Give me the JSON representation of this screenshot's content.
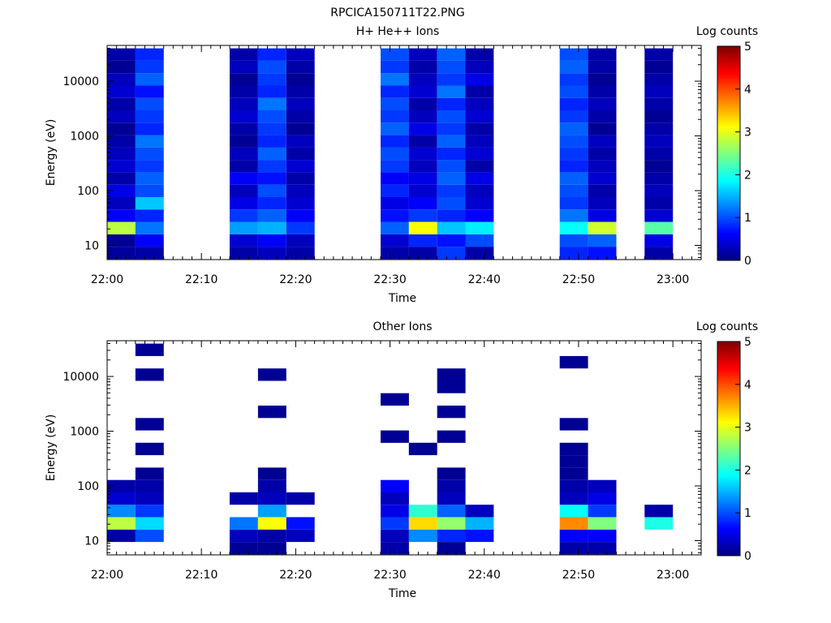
{
  "figure_title": "RPCICA150711T22.PNG",
  "chart_data": [
    {
      "type": "heatmap",
      "title": "H+ He++ Ions",
      "xlabel": "Time",
      "ylabel": "Energy (eV)",
      "yscale": "log",
      "ylim": [
        5.5,
        45000
      ],
      "xlim": [
        "22:00",
        "23:03"
      ],
      "xticks": [
        "22:00",
        "22:10",
        "22:20",
        "22:30",
        "22:40",
        "22:50",
        "23:00"
      ],
      "yticks": [
        "10",
        "100",
        "1000",
        "10000"
      ],
      "colorbar": {
        "label": "Log counts",
        "min": 0,
        "max": 5,
        "ticks": [
          "0",
          "1",
          "2",
          "3",
          "4",
          "5"
        ]
      },
      "columns": [
        {
          "t0": "22:00",
          "t1": "22:03",
          "levels": [
            0.15,
            0.1,
            2.8,
            0.6,
            0.3,
            0.5,
            0.2,
            0.4,
            0.3,
            0.2,
            0.1,
            0.3,
            0.2,
            0.4,
            0.3,
            0.1,
            0.2
          ]
        },
        {
          "t0": "22:03",
          "t1": "22:06",
          "levels": [
            0.2,
            0.6,
            1.2,
            0.8,
            1.6,
            1.0,
            1.1,
            0.9,
            1.0,
            1.2,
            0.8,
            0.9,
            1.0,
            0.7,
            1.1,
            0.9,
            0.8
          ]
        },
        {
          "t0": "22:13",
          "t1": "22:16",
          "levels": [
            0.2,
            0.4,
            1.4,
            0.9,
            0.5,
            0.3,
            0.6,
            0.2,
            0.3,
            0.1,
            0.2,
            0.4,
            0.3,
            0.2,
            0.1,
            0.3,
            0.2
          ]
        },
        {
          "t0": "22:16",
          "t1": "22:19",
          "levels": [
            0.3,
            0.6,
            1.5,
            1.1,
            0.8,
            1.0,
            0.7,
            0.9,
            1.1,
            0.8,
            0.9,
            1.0,
            1.2,
            0.8,
            0.9,
            1.0,
            0.8
          ]
        },
        {
          "t0": "22:19",
          "t1": "22:22",
          "levels": [
            0.2,
            0.3,
            0.9,
            0.6,
            0.4,
            0.3,
            0.2,
            0.4,
            0.2,
            0.3,
            0.1,
            0.2,
            0.3,
            0.2,
            0.1,
            0.2,
            0.3
          ]
        },
        {
          "t0": "22:29",
          "t1": "22:32",
          "levels": [
            0.2,
            0.4,
            1.1,
            0.7,
            0.5,
            0.8,
            0.6,
            0.9,
            1.0,
            0.8,
            1.1,
            0.9,
            1.0,
            0.8,
            1.2,
            0.9,
            1.0
          ]
        },
        {
          "t0": "22:32",
          "t1": "22:35",
          "levels": [
            0.2,
            0.8,
            3.1,
            0.9,
            0.6,
            0.4,
            0.5,
            0.3,
            0.4,
            0.2,
            0.5,
            0.3,
            0.2,
            0.4,
            0.3,
            0.2,
            0.3
          ]
        },
        {
          "t0": "22:35",
          "t1": "22:38",
          "levels": [
            0.9,
            0.7,
            1.6,
            0.8,
            1.0,
            0.9,
            1.1,
            1.0,
            0.8,
            1.1,
            0.9,
            1.0,
            0.8,
            1.2,
            0.9,
            1.0,
            1.1
          ]
        },
        {
          "t0": "22:38",
          "t1": "22:41",
          "levels": [
            0.2,
            1.0,
            1.8,
            0.6,
            0.4,
            0.3,
            0.5,
            0.2,
            0.4,
            0.3,
            0.2,
            0.4,
            0.3,
            0.2,
            0.5,
            0.3,
            0.2
          ]
        },
        {
          "t0": "22:48",
          "t1": "22:51",
          "levels": [
            0.8,
            1.0,
            1.9,
            1.2,
            0.9,
            1.0,
            1.1,
            0.8,
            0.9,
            1.0,
            1.1,
            0.9,
            0.8,
            1.0,
            0.9,
            1.1,
            1.0
          ]
        },
        {
          "t0": "22:51",
          "t1": "22:54",
          "levels": [
            0.7,
            1.1,
            2.9,
            0.5,
            0.3,
            0.2,
            0.4,
            0.3,
            0.2,
            0.3,
            0.1,
            0.2,
            0.3,
            0.2,
            0.1,
            0.2,
            0.2
          ]
        },
        {
          "t0": "22:57",
          "t1": "23:00",
          "levels": [
            0.2,
            0.5,
            2.3,
            0.4,
            0.2,
            0.3,
            0.2,
            0.1,
            0.2,
            0.3,
            0.2,
            0.1,
            0.2,
            0.3,
            0.2,
            0.1,
            0.2
          ]
        }
      ]
    },
    {
      "type": "heatmap",
      "title": "Other Ions",
      "xlabel": "Time",
      "ylabel": "Energy (eV)",
      "yscale": "log",
      "ylim": [
        5.5,
        45000
      ],
      "xlim": [
        "22:00",
        "23:03"
      ],
      "xticks": [
        "22:00",
        "22:10",
        "22:20",
        "22:30",
        "22:40",
        "22:50",
        "23:00"
      ],
      "yticks": [
        "10",
        "100",
        "1000",
        "10000"
      ],
      "colorbar": {
        "label": "Log counts",
        "min": 0,
        "max": 5,
        "ticks": [
          "0",
          "1",
          "2",
          "3",
          "4",
          "5"
        ]
      },
      "columns": [
        {
          "t0": "22:00",
          "t1": "22:03",
          "levels": [
            -1,
            0.2,
            2.8,
            1.3,
            0.4,
            0.2,
            -1,
            -1,
            -1,
            -1,
            -1,
            -1,
            -1,
            -1,
            -1,
            -1,
            -1
          ]
        },
        {
          "t0": "22:03",
          "t1": "22:06",
          "levels": [
            -1,
            1.0,
            1.7,
            0.9,
            0.3,
            0.2,
            0.1,
            -1,
            0.1,
            -1,
            0.1,
            -1,
            -1,
            -1,
            0.1,
            -1,
            0.1
          ]
        },
        {
          "t0": "22:13",
          "t1": "22:16",
          "levels": [
            0.1,
            0.3,
            1.2,
            -1,
            0.2,
            -1,
            -1,
            -1,
            -1,
            -1,
            -1,
            -1,
            -1,
            -1,
            -1,
            -1,
            -1
          ]
        },
        {
          "t0": "22:16",
          "t1": "22:19",
          "levels": [
            0.1,
            0.2,
            3.1,
            1.4,
            0.3,
            0.2,
            0.1,
            -1,
            -1,
            -1,
            -1,
            0.1,
            -1,
            -1,
            0.1,
            -1,
            -1
          ]
        },
        {
          "t0": "22:19",
          "t1": "22:22",
          "levels": [
            -1,
            0.3,
            0.7,
            -1,
            0.2,
            -1,
            -1,
            -1,
            -1,
            -1,
            -1,
            -1,
            -1,
            -1,
            -1,
            -1,
            -1
          ]
        },
        {
          "t0": "22:29",
          "t1": "22:32",
          "levels": [
            0.2,
            0.3,
            0.9,
            0.5,
            0.3,
            0.6,
            -1,
            -1,
            -1,
            0.1,
            -1,
            -1,
            0.1,
            -1,
            -1,
            -1,
            -1
          ]
        },
        {
          "t0": "22:32",
          "t1": "22:35",
          "levels": [
            -1,
            1.3,
            3.3,
            2.1,
            -1,
            -1,
            -1,
            -1,
            0.1,
            -1,
            -1,
            -1,
            -1,
            -1,
            -1,
            -1,
            -1
          ]
        },
        {
          "t0": "22:35",
          "t1": "22:38",
          "levels": [
            0.1,
            0.8,
            2.6,
            1.1,
            0.3,
            0.2,
            0.1,
            -1,
            -1,
            0.1,
            -1,
            0.1,
            -1,
            0.1,
            0.1,
            -1,
            -1
          ]
        },
        {
          "t0": "22:38",
          "t1": "22:41",
          "levels": [
            -1,
            0.7,
            1.5,
            0.3,
            -1,
            -1,
            -1,
            -1,
            -1,
            -1,
            -1,
            -1,
            -1,
            -1,
            -1,
            -1,
            -1
          ]
        },
        {
          "t0": "22:48",
          "t1": "22:51",
          "levels": [
            0.2,
            0.6,
            3.7,
            1.9,
            0.3,
            0.2,
            0.1,
            0.1,
            0.1,
            -1,
            0.1,
            -1,
            -1,
            -1,
            -1,
            0.1,
            -1
          ]
        },
        {
          "t0": "22:51",
          "t1": "22:54",
          "levels": [
            0.2,
            0.6,
            2.5,
            0.9,
            0.5,
            0.3,
            -1,
            -1,
            -1,
            -1,
            -1,
            -1,
            -1,
            -1,
            -1,
            -1,
            -1
          ]
        },
        {
          "t0": "22:57",
          "t1": "23:00",
          "levels": [
            -1,
            -1,
            2.0,
            0.2,
            -1,
            -1,
            -1,
            -1,
            -1,
            -1,
            -1,
            -1,
            -1,
            -1,
            -1,
            -1,
            -1
          ]
        }
      ]
    }
  ]
}
